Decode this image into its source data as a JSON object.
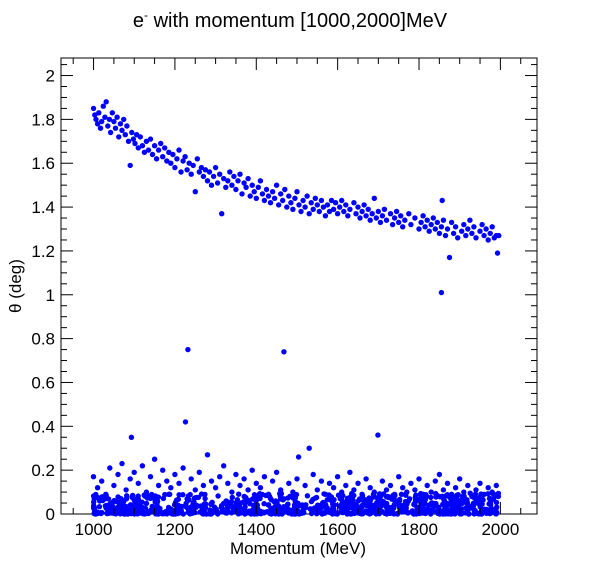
{
  "chart_data": {
    "type": "scatter",
    "title_main": "e",
    "title_sup": "-",
    "title_rest": " with momentum [1000,2000]MeV",
    "xlabel": "Momentum (MeV)",
    "ylabel": "θ (deg)",
    "xlim": [
      920,
      2090
    ],
    "ylim": [
      0,
      2.08
    ],
    "xticks": [
      1000,
      1200,
      1400,
      1600,
      1800,
      2000
    ],
    "yticks": [
      0,
      0.2,
      0.4,
      0.6,
      0.8,
      1,
      1.2,
      1.4,
      1.6,
      1.8,
      2
    ],
    "grid": false,
    "marker_color": "#0000ff",
    "series": [
      {
        "points": [
          [
            1000,
            1.85
          ],
          [
            1003,
            1.82
          ],
          [
            1006,
            1.8
          ],
          [
            1010,
            1.78
          ],
          [
            1013,
            1.83
          ],
          [
            1017,
            1.76
          ],
          [
            1020,
            1.79
          ],
          [
            1024,
            1.86
          ],
          [
            1028,
            1.81
          ],
          [
            1031,
            1.88
          ],
          [
            1035,
            1.77
          ],
          [
            1039,
            1.8
          ],
          [
            1042,
            1.74
          ],
          [
            1046,
            1.83
          ],
          [
            1050,
            1.79
          ],
          [
            1054,
            1.76
          ],
          [
            1058,
            1.81
          ],
          [
            1062,
            1.72
          ],
          [
            1066,
            1.78
          ],
          [
            1070,
            1.75
          ],
          [
            1074,
            1.8
          ],
          [
            1078,
            1.73
          ],
          [
            1082,
            1.77
          ],
          [
            1086,
            1.7
          ],
          [
            1090,
            1.59
          ],
          [
            1094,
            1.74
          ],
          [
            1098,
            1.71
          ],
          [
            1102,
            1.69
          ],
          [
            1106,
            1.73
          ],
          [
            1110,
            1.67
          ],
          [
            1115,
            1.72
          ],
          [
            1120,
            1.68
          ],
          [
            1125,
            1.65
          ],
          [
            1130,
            1.7
          ],
          [
            1135,
            1.66
          ],
          [
            1140,
            1.71
          ],
          [
            1145,
            1.64
          ],
          [
            1150,
            1.68
          ],
          [
            1155,
            1.62
          ],
          [
            1160,
            1.66
          ],
          [
            1165,
            1.69
          ],
          [
            1170,
            1.63
          ],
          [
            1175,
            1.67
          ],
          [
            1180,
            1.61
          ],
          [
            1185,
            1.65
          ],
          [
            1190,
            1.6
          ],
          [
            1195,
            1.64
          ],
          [
            1200,
            1.58
          ],
          [
            1205,
            1.62
          ],
          [
            1210,
            1.66
          ],
          [
            1215,
            1.56
          ],
          [
            1220,
            1.61
          ],
          [
            1225,
            1.63
          ],
          [
            1230,
            1.57
          ],
          [
            1235,
            1.6
          ],
          [
            1240,
            1.55
          ],
          [
            1245,
            1.59
          ],
          [
            1250,
            1.47
          ],
          [
            1255,
            1.62
          ],
          [
            1260,
            1.56
          ],
          [
            1265,
            1.58
          ],
          [
            1270,
            1.54
          ],
          [
            1275,
            1.57
          ],
          [
            1280,
            1.52
          ],
          [
            1285,
            1.56
          ],
          [
            1290,
            1.5
          ],
          [
            1295,
            1.54
          ],
          [
            1300,
            1.58
          ],
          [
            1305,
            1.51
          ],
          [
            1310,
            1.55
          ],
          [
            1315,
            1.37
          ],
          [
            1320,
            1.53
          ],
          [
            1325,
            1.49
          ],
          [
            1330,
            1.52
          ],
          [
            1335,
            1.56
          ],
          [
            1340,
            1.5
          ],
          [
            1345,
            1.54
          ],
          [
            1350,
            1.48
          ],
          [
            1355,
            1.52
          ],
          [
            1360,
            1.55
          ],
          [
            1365,
            1.46
          ],
          [
            1370,
            1.51
          ],
          [
            1375,
            1.49
          ],
          [
            1380,
            1.53
          ],
          [
            1385,
            1.45
          ],
          [
            1390,
            1.5
          ],
          [
            1395,
            1.47
          ],
          [
            1400,
            1.44
          ],
          [
            1405,
            1.49
          ],
          [
            1410,
            1.52
          ],
          [
            1415,
            1.46
          ],
          [
            1420,
            1.43
          ],
          [
            1425,
            1.48
          ],
          [
            1430,
            1.45
          ],
          [
            1435,
            1.42
          ],
          [
            1440,
            1.47
          ],
          [
            1445,
            1.44
          ],
          [
            1450,
            1.5
          ],
          [
            1455,
            1.41
          ],
          [
            1460,
            1.46
          ],
          [
            1465,
            1.43
          ],
          [
            1470,
            1.48
          ],
          [
            1475,
            1.4
          ],
          [
            1480,
            1.45
          ],
          [
            1485,
            1.42
          ],
          [
            1490,
            1.39
          ],
          [
            1495,
            1.44
          ],
          [
            1500,
            1.47
          ],
          [
            1505,
            1.41
          ],
          [
            1510,
            1.38
          ],
          [
            1515,
            1.43
          ],
          [
            1520,
            1.4
          ],
          [
            1525,
            1.45
          ],
          [
            1530,
            1.37
          ],
          [
            1535,
            1.42
          ],
          [
            1540,
            1.39
          ],
          [
            1545,
            1.44
          ],
          [
            1550,
            1.41
          ],
          [
            1555,
            1.38
          ],
          [
            1560,
            1.43
          ],
          [
            1565,
            1.4
          ],
          [
            1570,
            1.36
          ],
          [
            1575,
            1.41
          ],
          [
            1580,
            1.38
          ],
          [
            1585,
            1.43
          ],
          [
            1590,
            1.39
          ],
          [
            1595,
            1.42
          ],
          [
            1600,
            1.37
          ],
          [
            1605,
            1.4
          ],
          [
            1610,
            1.43
          ],
          [
            1615,
            1.38
          ],
          [
            1620,
            1.41
          ],
          [
            1625,
            1.36
          ],
          [
            1630,
            1.39
          ],
          [
            1640,
            1.42
          ],
          [
            1645,
            1.37
          ],
          [
            1650,
            1.4
          ],
          [
            1655,
            1.35
          ],
          [
            1660,
            1.38
          ],
          [
            1665,
            1.41
          ],
          [
            1670,
            1.36
          ],
          [
            1675,
            1.39
          ],
          [
            1680,
            1.34
          ],
          [
            1685,
            1.37
          ],
          [
            1690,
            1.44
          ],
          [
            1695,
            1.35
          ],
          [
            1700,
            1.38
          ],
          [
            1705,
            1.33
          ],
          [
            1710,
            1.36
          ],
          [
            1715,
            1.39
          ],
          [
            1720,
            1.34
          ],
          [
            1730,
            1.37
          ],
          [
            1735,
            1.32
          ],
          [
            1740,
            1.35
          ],
          [
            1745,
            1.38
          ],
          [
            1750,
            1.33
          ],
          [
            1755,
            1.36
          ],
          [
            1760,
            1.31
          ],
          [
            1765,
            1.34
          ],
          [
            1775,
            1.37
          ],
          [
            1780,
            1.32
          ],
          [
            1790,
            1.35
          ],
          [
            1800,
            1.3
          ],
          [
            1805,
            1.33
          ],
          [
            1810,
            1.36
          ],
          [
            1815,
            1.31
          ],
          [
            1820,
            1.34
          ],
          [
            1825,
            1.29
          ],
          [
            1830,
            1.32
          ],
          [
            1835,
            1.35
          ],
          [
            1840,
            1.3
          ],
          [
            1845,
            1.33
          ],
          [
            1850,
            1.28
          ],
          [
            1855,
            1.31
          ],
          [
            1857,
            1.43
          ],
          [
            1860,
            1.34
          ],
          [
            1865,
            1.27
          ],
          [
            1870,
            1.3
          ],
          [
            1875,
            1.17
          ],
          [
            1880,
            1.33
          ],
          [
            1885,
            1.28
          ],
          [
            1890,
            1.31
          ],
          [
            1895,
            1.26
          ],
          [
            1905,
            1.29
          ],
          [
            1910,
            1.32
          ],
          [
            1915,
            1.27
          ],
          [
            1920,
            1.3
          ],
          [
            1925,
            1.34
          ],
          [
            1930,
            1.28
          ],
          [
            1935,
            1.31
          ],
          [
            1940,
            1.26
          ],
          [
            1950,
            1.29
          ],
          [
            1955,
            1.32
          ],
          [
            1960,
            1.27
          ],
          [
            1965,
            1.3
          ],
          [
            1970,
            1.25
          ],
          [
            1975,
            1.28
          ],
          [
            1980,
            1.31
          ],
          [
            1985,
            1.26
          ],
          [
            1990,
            1.27
          ],
          [
            1993,
            1.19
          ],
          [
            1996,
            1.27
          ],
          [
            1855,
            1.01
          ],
          [
            1232,
            0.75
          ],
          [
            1468,
            0.74
          ],
          [
            1226,
            0.42
          ],
          [
            1699,
            0.36
          ],
          [
            1093,
            0.35
          ],
          [
            1530,
            0.3
          ],
          [
            1504,
            0.26
          ],
          [
            1000,
            0.17
          ],
          [
            1010,
            0.12
          ],
          [
            1020,
            0.15
          ],
          [
            1030,
            0.09
          ],
          [
            1040,
            0.21
          ],
          [
            1050,
            0.13
          ],
          [
            1060,
            0.18
          ],
          [
            1070,
            0.23
          ],
          [
            1080,
            0.11
          ],
          [
            1090,
            0.16
          ],
          [
            1100,
            0.19
          ],
          [
            1110,
            0.14
          ],
          [
            1120,
            0.22
          ],
          [
            1130,
            0.1
          ],
          [
            1140,
            0.17
          ],
          [
            1150,
            0.25
          ],
          [
            1160,
            0.13
          ],
          [
            1170,
            0.2
          ],
          [
            1180,
            0.15
          ],
          [
            1190,
            0.12
          ],
          [
            1200,
            0.18
          ],
          [
            1210,
            0.14
          ],
          [
            1220,
            0.21
          ],
          [
            1240,
            0.16
          ],
          [
            1250,
            0.11
          ],
          [
            1260,
            0.19
          ],
          [
            1270,
            0.13
          ],
          [
            1280,
            0.27
          ],
          [
            1290,
            0.15
          ],
          [
            1300,
            0.12
          ],
          [
            1310,
            0.17
          ],
          [
            1320,
            0.22
          ],
          [
            1330,
            0.14
          ],
          [
            1340,
            0.1
          ],
          [
            1350,
            0.18
          ],
          [
            1360,
            0.13
          ],
          [
            1370,
            0.16
          ],
          [
            1380,
            0.11
          ],
          [
            1390,
            0.2
          ],
          [
            1400,
            0.14
          ],
          [
            1410,
            0.12
          ],
          [
            1420,
            0.17
          ],
          [
            1430,
            0.09
          ],
          [
            1440,
            0.15
          ],
          [
            1450,
            0.19
          ],
          [
            1460,
            0.11
          ],
          [
            1480,
            0.14
          ],
          [
            1490,
            0.1
          ],
          [
            1500,
            0.16
          ],
          [
            1520,
            0.13
          ],
          [
            1540,
            0.18
          ],
          [
            1550,
            0.11
          ],
          [
            1560,
            0.15
          ],
          [
            1570,
            0.09
          ],
          [
            1580,
            0.14
          ],
          [
            1590,
            0.12
          ],
          [
            1600,
            0.17
          ],
          [
            1610,
            0.1
          ],
          [
            1620,
            0.13
          ],
          [
            1630,
            0.19
          ],
          [
            1640,
            0.11
          ],
          [
            1650,
            0.14
          ],
          [
            1660,
            0.09
          ],
          [
            1670,
            0.16
          ],
          [
            1680,
            0.12
          ],
          [
            1690,
            0.1
          ],
          [
            1710,
            0.15
          ],
          [
            1720,
            0.11
          ],
          [
            1730,
            0.13
          ],
          [
            1740,
            0.09
          ],
          [
            1750,
            0.17
          ],
          [
            1760,
            0.12
          ],
          [
            1770,
            0.1
          ],
          [
            1780,
            0.14
          ],
          [
            1790,
            0.11
          ],
          [
            1800,
            0.16
          ],
          [
            1810,
            0.09
          ],
          [
            1820,
            0.13
          ],
          [
            1830,
            0.1
          ],
          [
            1840,
            0.15
          ],
          [
            1850,
            0.18
          ],
          [
            1860,
            0.11
          ],
          [
            1870,
            0.14
          ],
          [
            1880,
            0.09
          ],
          [
            1890,
            0.12
          ],
          [
            1900,
            0.16
          ],
          [
            1910,
            0.1
          ],
          [
            1920,
            0.13
          ],
          [
            1930,
            0.08
          ],
          [
            1940,
            0.11
          ],
          [
            1950,
            0.14
          ],
          [
            1960,
            0.09
          ],
          [
            1970,
            0.12
          ],
          [
            1980,
            0.1
          ],
          [
            1990,
            0.13
          ],
          [
            1995,
            0.08
          ]
        ]
      }
    ]
  }
}
